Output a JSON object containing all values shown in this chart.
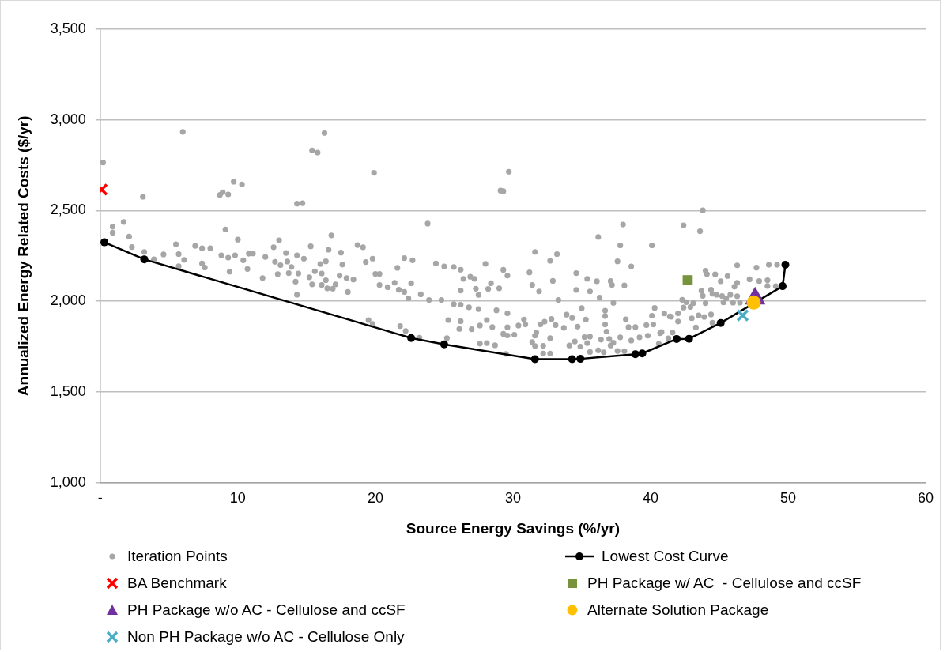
{
  "chart_data": {
    "type": "scatter",
    "xlabel": "Source Energy Savings (%/yr)",
    "ylabel": "Annualized Energy Related Costs ($/yr)",
    "xlim": [
      0,
      60
    ],
    "xticks": [
      {
        "value": 0,
        "label": "-"
      },
      10,
      20,
      30,
      40,
      50,
      60
    ],
    "ylim": [
      1000,
      3500
    ],
    "yticks": [
      {
        "value": 1000,
        "label": "1,000"
      },
      {
        "value": 1500,
        "label": "1,500"
      },
      {
        "value": 2000,
        "label": "2,000"
      },
      {
        "value": 2500,
        "label": "2,500"
      },
      {
        "value": 3000,
        "label": "3,000"
      },
      {
        "value": 3500,
        "label": "3,500"
      }
    ],
    "grid": "y",
    "legend": "bottom",
    "series": [
      {
        "name": "Iteration Points",
        "type": "scatter",
        "marker": "circle",
        "color": "#a6a6a6",
        "x": [
          0.2,
          6.0,
          3.1,
          0.9,
          0.9,
          1.7,
          2.1,
          2.3,
          3.2,
          3.9,
          4.6,
          5.5,
          5.7,
          5.7,
          6.1,
          6.9,
          7.4,
          8.0,
          7.4,
          7.6,
          8.7,
          8.9,
          9.3,
          9.7,
          10.3,
          9.1,
          10.0,
          8.8,
          9.3,
          9.4,
          9.8,
          10.4,
          10.8,
          11.1,
          10.7,
          11.8,
          12.0,
          12.6,
          13.0,
          12.7,
          13.1,
          12.9,
          13.5,
          13.6,
          13.9,
          13.7,
          14.3,
          14.8,
          14.2,
          14.3,
          14.4,
          14.3,
          14.7,
          15.4,
          15.8,
          16.3,
          15.3,
          15.6,
          15.2,
          15.4,
          16.0,
          16.4,
          16.6,
          16.8,
          16.1,
          16.4,
          16.1,
          16.5,
          17.1,
          16.9,
          17.5,
          17.6,
          17.4,
          17.9,
          18.0,
          18.4,
          18.7,
          19.1,
          19.3,
          19.8,
          19.9,
          20.0,
          20.3,
          20.3,
          20.9,
          19.5,
          19.8,
          29.7,
          29.1,
          29.3,
          23.8,
          38.0,
          36.2,
          37.8,
          40.1,
          37.6,
          38.6,
          38.1,
          31.6,
          33.2,
          32.7,
          31.2,
          31.4,
          31.9,
          32.9,
          33.3,
          34.6,
          34.6,
          35.4,
          35.6,
          36.1,
          36.3,
          37.1,
          37.2,
          37.3,
          22.1,
          22.7,
          21.6,
          20.9,
          21.4,
          21.7,
          22.1,
          22.6,
          22.4,
          23.3,
          23.9,
          24.4,
          25.0,
          25.7,
          26.2,
          26.4,
          26.2,
          26.9,
          27.2,
          27.3,
          27.5,
          28.0,
          28.4,
          28.2,
          29.0,
          29.3,
          29.6,
          24.8,
          25.7,
          26.2,
          26.8,
          27.5,
          28.8,
          21.8,
          22.2,
          23.2,
          25.2,
          25.3,
          26.2,
          26.1,
          27.0,
          27.6,
          27.6,
          28.1,
          28.1,
          28.5,
          28.7,
          29.3,
          29.6,
          29.6,
          30.1,
          29.5,
          29.6,
          30.4,
          30.9,
          30.8,
          31.4,
          31.6,
          31.7,
          31.6,
          32.2,
          32.2,
          32.7,
          32.7,
          32.0,
          32.3,
          32.8,
          33.1,
          33.7,
          33.9,
          34.3,
          35.0,
          35.3,
          34.7,
          34.1,
          34.5,
          34.9,
          35.2,
          35.4,
          35.6,
          35.6,
          36.2,
          36.4,
          36.7,
          36.7,
          36.7,
          36.8,
          37.0,
          37.1,
          36.6,
          37.3,
          37.6,
          37.8,
          38.2,
          38.4,
          38.6,
          38.1,
          38.9,
          39.2,
          39.7,
          39.8,
          40.2,
          40.3,
          40.1,
          41.0,
          40.8,
          41.4,
          43.8,
          42.4,
          43.6,
          44.0,
          44.1,
          44.7,
          45.6,
          45.1,
          46.3,
          47.7,
          48.6,
          49.2,
          46.3,
          46.1,
          47.2,
          47.9,
          48.5,
          48.5,
          49.1,
          43.7,
          44.4,
          44.5,
          43.8,
          44.8,
          45.2,
          45.8,
          46.3,
          45.5,
          45.3,
          46.0,
          46.5,
          42.3,
          42.6,
          43.1,
          44.0,
          42.9,
          42.4,
          42.0,
          41.5,
          42.0,
          43.0,
          43.5,
          43.9,
          44.4,
          44.5,
          43.3,
          40.7,
          41.6,
          40.6,
          41.3
        ],
        "values": [
          2765,
          2934,
          2576,
          2411,
          2378,
          2437,
          2357,
          2299,
          2272,
          2231,
          2258,
          2314,
          2260,
          2193,
          2228,
          2305,
          2292,
          2292,
          2208,
          2186,
          2586,
          2601,
          2589,
          2659,
          2644,
          2396,
          2340,
          2253,
          2240,
          2163,
          2253,
          2226,
          2262,
          2263,
          2178,
          2128,
          2244,
          2298,
          2336,
          2217,
          2199,
          2150,
          2266,
          2219,
          2189,
          2155,
          2253,
          2235,
          2108,
          2036,
          2153,
          2538,
          2541,
          2832,
          2820,
          2928,
          2303,
          2165,
          2132,
          2093,
          2205,
          2220,
          2284,
          2363,
          2153,
          2116,
          2090,
          2071,
          2093,
          2069,
          2268,
          2202,
          2141,
          2128,
          2051,
          2120,
          2310,
          2298,
          2216,
          2235,
          2708,
          2151,
          2151,
          2090,
          2077,
          1896,
          1875,
          2714,
          2610,
          2607,
          2428,
          2423,
          2354,
          2308,
          2308,
          2220,
          2192,
          2087,
          2272,
          2260,
          2223,
          2159,
          2090,
          2054,
          2112,
          2007,
          2155,
          2062,
          2123,
          2054,
          2110,
          2020,
          2111,
          2090,
          1991,
          2238,
          2226,
          2184,
          2078,
          2102,
          2063,
          2051,
          2099,
          2016,
          2038,
          2007,
          2208,
          2192,
          2189,
          2174,
          2123,
          2059,
          2135,
          2123,
          2069,
          2035,
          2206,
          2099,
          2068,
          2071,
          2173,
          2141,
          2007,
          1984,
          1981,
          1966,
          1957,
          1950,
          1863,
          1836,
          1799,
          1797,
          1896,
          1890,
          1847,
          1845,
          1766,
          1866,
          1769,
          1896,
          1857,
          1757,
          1820,
          1811,
          1856,
          1815,
          1709,
          1933,
          1866,
          1872,
          1899,
          1775,
          1810,
          1827,
          1753,
          1754,
          1711,
          1712,
          1796,
          1872,
          1887,
          1902,
          1868,
          1853,
          1926,
          1908,
          1962,
          1899,
          1860,
          1756,
          1778,
          1750,
          1802,
          1769,
          1805,
          1720,
          1729,
          1788,
          1918,
          1948,
          1872,
          1833,
          1792,
          1756,
          1718,
          1771,
          1726,
          1801,
          1900,
          1857,
          1783,
          1725,
          1857,
          1801,
          1868,
          1810,
          1872,
          1963,
          1920,
          1932,
          1830,
          1916,
          2501,
          2419,
          2386,
          2168,
          2150,
          2148,
          2139,
          2110,
          2198,
          2185,
          2201,
          2201,
          2102,
          2080,
          2121,
          2111,
          2116,
          2084,
          2083,
          2057,
          2063,
          2041,
          2030,
          2036,
          2029,
          2036,
          2028,
          2017,
          1993,
          1992,
          1992,
          2008,
          1995,
          1989,
          1989,
          1968,
          1965,
          1933,
          1914,
          1888,
          1906,
          1922,
          1913,
          1927,
          1881,
          1855,
          1824,
          1827,
          1765,
          1795
        ]
      },
      {
        "name": "Lowest Cost Curve",
        "type": "line",
        "marker": "circle",
        "line_style": "solid",
        "color": "#000000",
        "x": [
          0.3,
          3.2,
          22.6,
          25.0,
          31.6,
          34.3,
          34.9,
          38.9,
          39.4,
          41.9,
          42.8,
          45.1,
          49.6,
          49.8
        ],
        "values": [
          2325,
          2231,
          1797,
          1762,
          1680,
          1680,
          1682,
          1708,
          1712,
          1792,
          1793,
          1880,
          2083,
          2201
        ]
      },
      {
        "name": "BA Benchmark",
        "type": "scatter",
        "marker": "cross",
        "color": "#ff0000",
        "x": [
          0.1
        ],
        "values": [
          2616
        ]
      },
      {
        "name": "PH Package w/ AC  - Cellulose and ccSF",
        "type": "scatter",
        "marker": "square",
        "color": "#77933c",
        "x": [
          42.7
        ],
        "values": [
          2116
        ]
      },
      {
        "name": "PH Package w/o AC - Cellulose and ccSF",
        "type": "scatter",
        "marker": "triangle",
        "color": "#7030a0",
        "x": [
          47.6
        ],
        "values": [
          2015
        ]
      },
      {
        "name": "Alternate Solution Package",
        "type": "scatter",
        "marker": "circle",
        "color": "#ffc000",
        "x": [
          47.5
        ],
        "values": [
          1993
        ]
      },
      {
        "name": "Non PH Package w/o AC - Cellulose Only",
        "type": "scatter",
        "marker": "cross",
        "color": "#4bacc6",
        "x": [
          46.7
        ],
        "values": [
          1922
        ]
      }
    ]
  }
}
